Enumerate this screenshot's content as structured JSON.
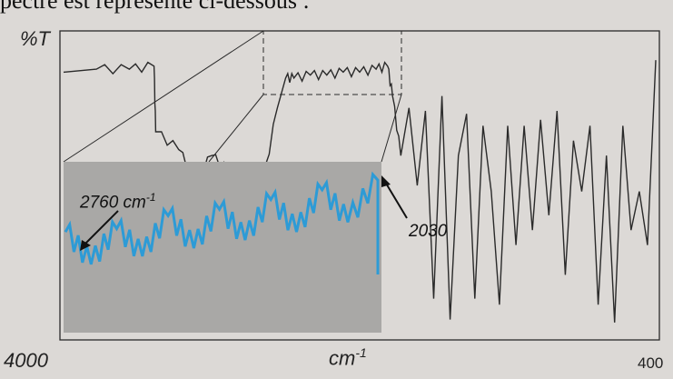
{
  "caption_fragment": "pectre est représenté ci-dessous :",
  "chart_data": {
    "type": "line",
    "title": "",
    "ylabel": "%T",
    "xlabel_unit": "cm",
    "xlabel_exp": "-1",
    "x_start_label": "4000",
    "x_end_label": "400",
    "xlim": [
      4000,
      400
    ],
    "ylim": [
      0,
      100
    ],
    "grid": false,
    "colors": {
      "main": "#2a2a2a",
      "inset_line": "#2d9bd6",
      "inset_bg": "#a9a8a6"
    },
    "series": [
      {
        "x": [
          4000,
          3800,
          3600,
          3450,
          3440,
          3300,
          3200,
          3100,
          3000,
          2900,
          2800,
          2700,
          2650,
          2600,
          2500,
          2400,
          2300,
          2200,
          2100,
          2030,
          2000,
          1950,
          1900,
          1850,
          1800,
          1750,
          1700,
          1650,
          1600,
          1550,
          1500,
          1450,
          1400,
          1350,
          1300,
          1250,
          1200,
          1150,
          1100,
          1050,
          1000,
          950,
          900,
          850,
          800,
          750,
          700,
          650,
          600,
          550,
          500,
          450,
          400
        ],
        "y": [
          88,
          89,
          89,
          90,
          68,
          62,
          52,
          60,
          55,
          30,
          48,
          76,
          86,
          86,
          87,
          87,
          88,
          88,
          89,
          90,
          80,
          60,
          76,
          50,
          75,
          12,
          80,
          5,
          60,
          74,
          12,
          70,
          48,
          10,
          70,
          30,
          70,
          35,
          72,
          40,
          75,
          20,
          65,
          48,
          70,
          10,
          60,
          4,
          70,
          35,
          48,
          30,
          92
        ]
      }
    ],
    "inset": {
      "x": [
        2760,
        2700,
        2640,
        2580,
        2520,
        2460,
        2400,
        2340,
        2280,
        2220,
        2160,
        2100,
        2030
      ],
      "y": [
        60,
        40,
        62,
        45,
        70,
        50,
        74,
        55,
        80,
        60,
        86,
        66,
        92
      ],
      "annotation_left": "2760 cm",
      "annotation_left_exp": "-1",
      "annotation_right": "2030"
    }
  }
}
